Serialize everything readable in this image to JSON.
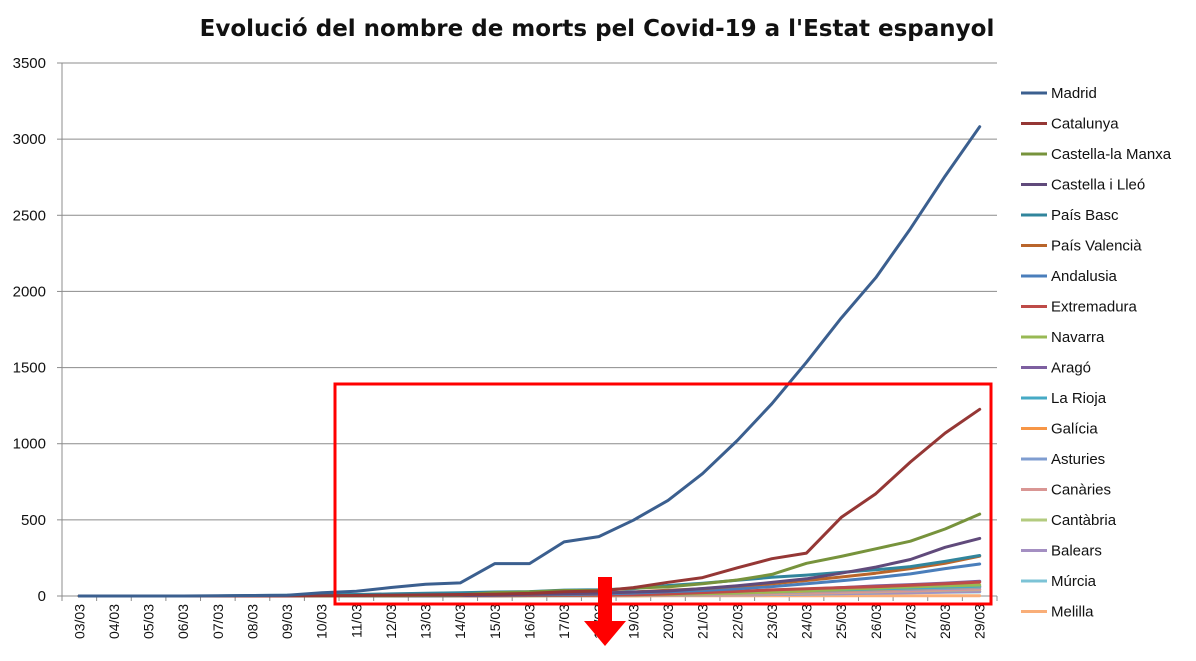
{
  "chart_data": {
    "type": "line",
    "title": "Evolució del nombre de morts pel Covid-19 a l'Estat espanyol",
    "xlabel": "",
    "ylabel": "",
    "ylim": [
      0,
      3500
    ],
    "yticks": [
      0,
      500,
      1000,
      1500,
      2000,
      2500,
      3000,
      3500
    ],
    "x": [
      "03/03",
      "04/03",
      "05/03",
      "06/03",
      "07/03",
      "08/03",
      "09/03",
      "10/03",
      "11/03",
      "12/03",
      "13/03",
      "14/03",
      "15/03",
      "16/03",
      "17/03",
      "18/03",
      "19/03",
      "20/03",
      "21/03",
      "22/03",
      "23/03",
      "24/03",
      "25/03",
      "26/03",
      "27/03",
      "28/03",
      "29/03"
    ],
    "grid": true,
    "legend": "right",
    "series": [
      {
        "name": "Madrid",
        "color": "#3B5F8F",
        "values": [
          0,
          0,
          0,
          0,
          2,
          3,
          5,
          21,
          31,
          56,
          77,
          86,
          213,
          213,
          355,
          390,
          498,
          628,
          804,
          1021,
          1263,
          1535,
          1825,
          2090,
          2412,
          2757,
          3082
        ]
      },
      {
        "name": "Catalunya",
        "color": "#953735",
        "values": [
          0,
          0,
          0,
          0,
          0,
          0,
          0,
          2,
          3,
          5,
          7,
          10,
          12,
          17,
          28,
          33,
          55,
          90,
          121,
          185,
          245,
          282,
          516,
          672,
          880,
          1070,
          1226
        ]
      },
      {
        "name": "Castella-la Manxa",
        "color": "#77933C",
        "values": [
          0,
          0,
          0,
          0,
          0,
          0,
          0,
          0,
          1,
          2,
          4,
          7,
          22,
          27,
          36,
          36,
          52,
          60,
          80,
          105,
          142,
          215,
          260,
          310,
          360,
          440,
          538
        ]
      },
      {
        "name": "Castella i Lleó",
        "color": "#604A7B",
        "values": [
          0,
          0,
          0,
          0,
          0,
          0,
          0,
          0,
          0,
          1,
          2,
          3,
          7,
          11,
          16,
          19,
          26,
          33,
          49,
          67,
          89,
          113,
          150,
          190,
          240,
          320,
          378
        ]
      },
      {
        "name": "País Basc",
        "color": "#31859C",
        "values": [
          0,
          0,
          0,
          0,
          0,
          3,
          5,
          8,
          10,
          14,
          18,
          21,
          26,
          29,
          39,
          41,
          48,
          69,
          84,
          103,
          123,
          137,
          155,
          172,
          193,
          228,
          266
        ]
      },
      {
        "name": "País Valencià",
        "color": "#B9652B",
        "values": [
          0,
          0,
          0,
          0,
          0,
          0,
          0,
          0,
          1,
          2,
          3,
          4,
          8,
          10,
          15,
          19,
          26,
          38,
          48,
          65,
          80,
          102,
          125,
          150,
          180,
          215,
          262
        ]
      },
      {
        "name": "Andalusia",
        "color": "#4A7EBB",
        "values": [
          0,
          0,
          0,
          0,
          0,
          0,
          0,
          0,
          1,
          1,
          2,
          3,
          5,
          8,
          10,
          13,
          19,
          28,
          36,
          47,
          62,
          81,
          100,
          121,
          145,
          180,
          210
        ]
      },
      {
        "name": "Extremadura",
        "color": "#BE4B48",
        "values": [
          0,
          0,
          0,
          0,
          0,
          0,
          0,
          0,
          0,
          0,
          1,
          1,
          2,
          3,
          5,
          6,
          8,
          14,
          22,
          30,
          40,
          48,
          55,
          62,
          70,
          80,
          91
        ]
      },
      {
        "name": "Navarra",
        "color": "#98B954",
        "values": [
          0,
          0,
          0,
          0,
          0,
          0,
          0,
          0,
          0,
          0,
          0,
          1,
          1,
          2,
          4,
          5,
          8,
          11,
          15,
          20,
          27,
          35,
          44,
          52,
          60,
          66,
          72
        ]
      },
      {
        "name": "Aragó",
        "color": "#7D5FA0",
        "values": [
          0,
          0,
          0,
          0,
          0,
          0,
          0,
          0,
          0,
          0,
          1,
          1,
          2,
          3,
          5,
          7,
          10,
          14,
          19,
          26,
          34,
          44,
          55,
          66,
          75,
          85,
          97
        ]
      },
      {
        "name": "La Rioja",
        "color": "#46AAC5",
        "values": [
          0,
          0,
          0,
          0,
          0,
          0,
          0,
          1,
          2,
          3,
          3,
          3,
          4,
          4,
          6,
          8,
          10,
          14,
          17,
          22,
          28,
          34,
          40,
          46,
          52,
          58,
          64
        ]
      },
      {
        "name": "Galícia",
        "color": "#F79646",
        "values": [
          0,
          0,
          0,
          0,
          0,
          0,
          0,
          0,
          0,
          0,
          0,
          1,
          2,
          3,
          4,
          5,
          7,
          10,
          15,
          19,
          25,
          31,
          37,
          43,
          49,
          56,
          62
        ]
      },
      {
        "name": "Asturies",
        "color": "#7F9DD0",
        "values": [
          0,
          0,
          0,
          0,
          0,
          0,
          0,
          0,
          0,
          0,
          1,
          1,
          2,
          3,
          4,
          6,
          8,
          10,
          13,
          17,
          22,
          28,
          34,
          40,
          45,
          50,
          56
        ]
      },
      {
        "name": "Canàries",
        "color": "#D99694",
        "values": [
          0,
          0,
          0,
          0,
          0,
          0,
          0,
          0,
          0,
          0,
          0,
          1,
          1,
          2,
          3,
          4,
          5,
          7,
          9,
          12,
          16,
          20,
          25,
          30,
          35,
          40,
          45
        ]
      },
      {
        "name": "Cantàbria",
        "color": "#B3CB7F",
        "values": [
          0,
          0,
          0,
          0,
          0,
          0,
          0,
          0,
          0,
          0,
          0,
          0,
          1,
          1,
          2,
          3,
          4,
          6,
          8,
          11,
          14,
          18,
          23,
          28,
          33,
          38,
          42
        ]
      },
      {
        "name": "Balears",
        "color": "#A48FC2",
        "values": [
          0,
          0,
          0,
          0,
          0,
          0,
          0,
          0,
          0,
          0,
          0,
          0,
          1,
          1,
          2,
          2,
          3,
          4,
          6,
          8,
          10,
          13,
          16,
          19,
          22,
          26,
          30
        ]
      },
      {
        "name": "Múrcia",
        "color": "#7CC3D6",
        "values": [
          0,
          0,
          0,
          0,
          0,
          0,
          0,
          0,
          0,
          0,
          0,
          1,
          1,
          2,
          2,
          3,
          4,
          5,
          6,
          8,
          10,
          12,
          15,
          18,
          21,
          24,
          27
        ]
      },
      {
        "name": "Melilla",
        "color": "#F9AE78",
        "values": [
          0,
          0,
          0,
          0,
          0,
          0,
          0,
          0,
          0,
          0,
          0,
          0,
          0,
          0,
          0,
          0,
          0,
          1,
          1,
          1,
          1,
          1,
          1,
          2,
          2,
          2,
          2
        ]
      }
    ]
  },
  "annotation": {
    "highlight_color": "#FF0000"
  }
}
